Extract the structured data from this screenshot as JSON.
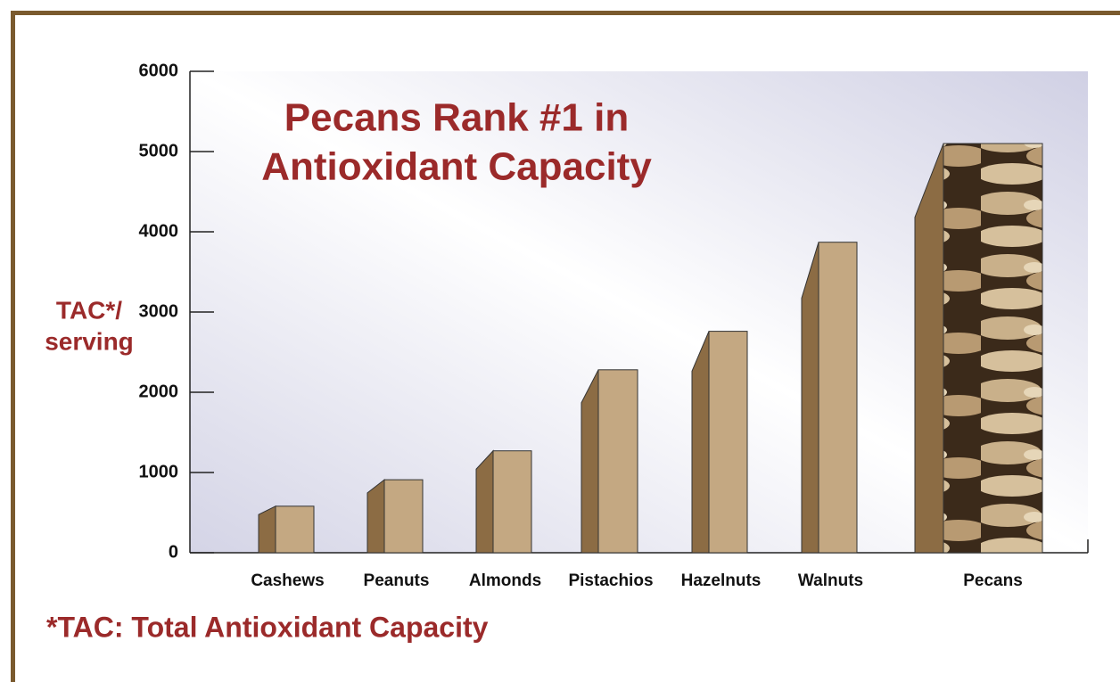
{
  "chart_data": {
    "type": "bar",
    "title_lines": [
      "Pecans Rank #1 in",
      "Antioxidant Capacity"
    ],
    "ylabel_lines": [
      "TAC*/",
      "serving"
    ],
    "footnote": "*TAC: Total Antioxidant Capacity",
    "categories": [
      "Cashews",
      "Peanuts",
      "Almonds",
      "Pistachios",
      "Hazelnuts",
      "Walnuts",
      "Pecans"
    ],
    "values": [
      580,
      910,
      1270,
      2280,
      2760,
      3870,
      5100
    ],
    "color": "#c4a882",
    "ylim": [
      0,
      6000
    ],
    "yticks": [
      0,
      1000,
      2000,
      3000,
      4000,
      5000,
      6000
    ]
  }
}
